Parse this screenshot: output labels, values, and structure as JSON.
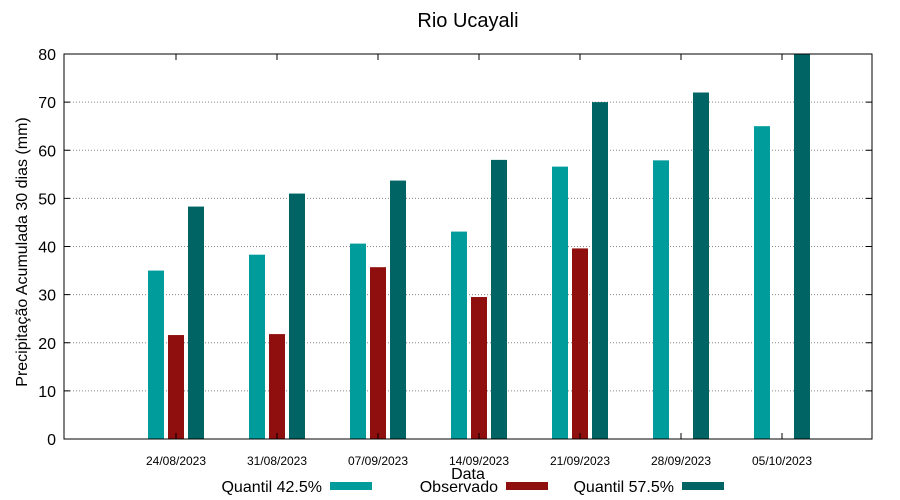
{
  "chart_data": {
    "type": "bar",
    "title": "Rio Ucayali",
    "xlabel": "Data",
    "ylabel": "Precipitação Acumulada 30 dias (mm)",
    "ylim": [
      0,
      80
    ],
    "yticks": [
      0,
      10,
      20,
      30,
      40,
      50,
      60,
      70,
      80
    ],
    "grid": true,
    "legend_position": "bottom",
    "categories": [
      "24/08/2023",
      "31/08/2023",
      "07/09/2023",
      "14/09/2023",
      "21/09/2023",
      "28/09/2023",
      "05/10/2023"
    ],
    "series": [
      {
        "name": "Quantil 42.5%",
        "color": "#009b9b",
        "values": [
          35,
          38.3,
          40.6,
          43.1,
          56.6,
          57.9,
          65
        ]
      },
      {
        "name": "Observado",
        "color": "#8f0e0e",
        "values": [
          21.6,
          21.8,
          35.7,
          29.5,
          39.6,
          null,
          null
        ]
      },
      {
        "name": "Quantil 57.5%",
        "color": "#006464",
        "values": [
          48.3,
          51,
          53.7,
          58,
          70,
          72,
          80
        ]
      }
    ]
  }
}
